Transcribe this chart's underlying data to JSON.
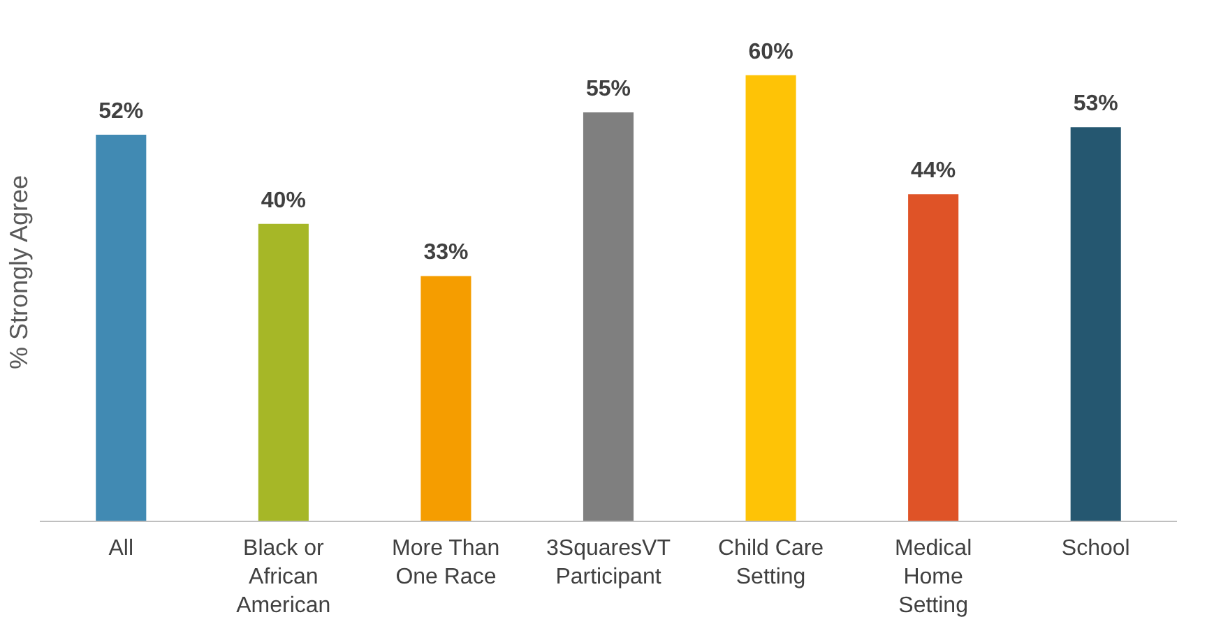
{
  "chart_data": {
    "type": "bar",
    "ylabel": "% Strongly Agree",
    "categories": [
      "All",
      "Black or\nAfrican\nAmerican",
      "More Than\nOne Race",
      "3SquaresVT\nParticipant",
      "Child Care\nSetting",
      "Medical\nHome\nSetting",
      "School"
    ],
    "values": [
      52,
      40,
      33,
      55,
      60,
      44,
      53
    ],
    "colors": [
      "#418ab3",
      "#a6b727",
      "#f59d00",
      "#7f7f7f",
      "#fec306",
      "#df5327",
      "#255770"
    ],
    "value_labels": [
      "52%",
      "40%",
      "33%",
      "55%",
      "60%",
      "44%",
      "53%"
    ],
    "grid": false
  }
}
